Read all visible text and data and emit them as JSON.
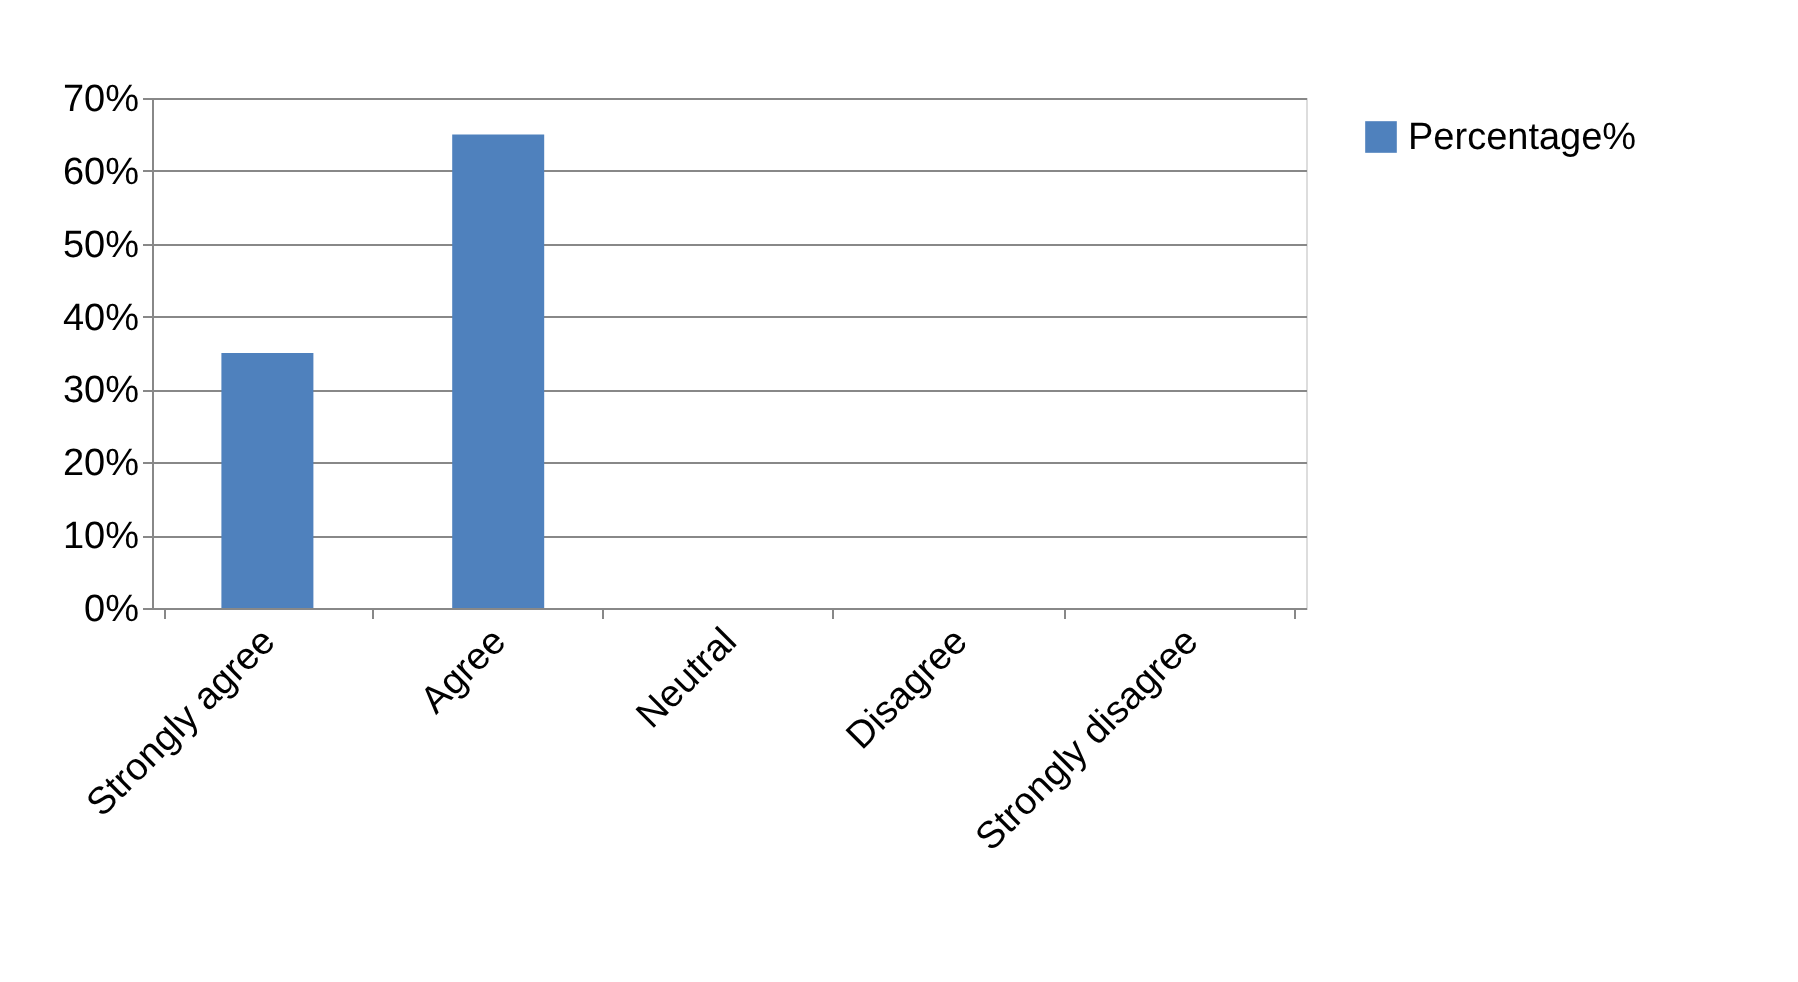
{
  "chart_data": {
    "type": "bar",
    "categories": [
      "Strongly agree",
      "Agree",
      "Neutral",
      "Disagree",
      "Strongly disagree"
    ],
    "series": [
      {
        "name": "Percentage%",
        "color": "#4f81bd",
        "values": [
          35,
          65,
          0,
          0,
          0
        ]
      }
    ],
    "ylim": [
      0,
      70
    ],
    "yticks": [
      {
        "value": 0,
        "label": "0%"
      },
      {
        "value": 10,
        "label": "10%"
      },
      {
        "value": 20,
        "label": "20%"
      },
      {
        "value": 30,
        "label": "30%"
      },
      {
        "value": 40,
        "label": "40%"
      },
      {
        "value": 50,
        "label": "50%"
      },
      {
        "value": 60,
        "label": "60%"
      },
      {
        "value": 70,
        "label": "70%"
      }
    ],
    "grid": "y",
    "legend": "right"
  }
}
